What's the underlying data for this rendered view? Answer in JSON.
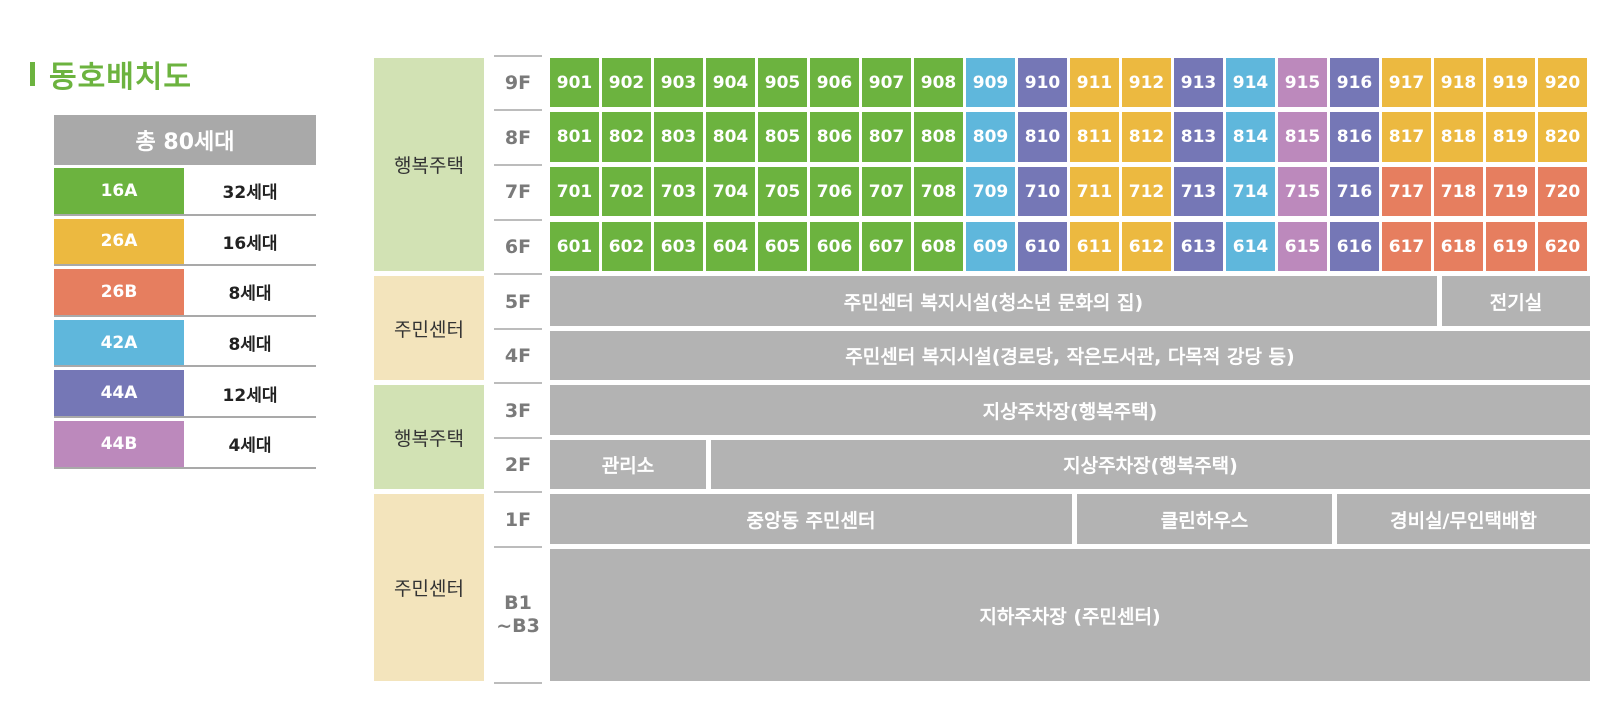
{
  "title": "동호배치도",
  "legend": {
    "total": "총 80세대",
    "items": [
      {
        "type": "16A",
        "count": "32세대",
        "color": "#6cb33f"
      },
      {
        "type": "26A",
        "count": "16세대",
        "color": "#ecb940"
      },
      {
        "type": "26B",
        "count": "8세대",
        "color": "#e67e5f"
      },
      {
        "type": "42A",
        "count": "8세대",
        "color": "#5fb7dc"
      },
      {
        "type": "44A",
        "count": "12세대",
        "color": "#7577b6"
      },
      {
        "type": "44B",
        "count": "4세대",
        "color": "#bc89bc"
      }
    ]
  },
  "zones": [
    "행복주택",
    "주민센터",
    "행복주택",
    "주민센터"
  ],
  "floors": [
    "9F",
    "8F",
    "7F",
    "6F",
    "5F",
    "4F",
    "3F",
    "2F",
    "1F",
    "B1\n~B3"
  ],
  "unit_floors": [
    {
      "floor": "9F",
      "units": [
        {
          "no": "901",
          "type": "16A"
        },
        {
          "no": "902",
          "type": "16A"
        },
        {
          "no": "903",
          "type": "16A"
        },
        {
          "no": "904",
          "type": "16A"
        },
        {
          "no": "905",
          "type": "16A"
        },
        {
          "no": "906",
          "type": "16A"
        },
        {
          "no": "907",
          "type": "16A"
        },
        {
          "no": "908",
          "type": "16A"
        },
        {
          "no": "909",
          "type": "42A"
        },
        {
          "no": "910",
          "type": "44A"
        },
        {
          "no": "911",
          "type": "26A"
        },
        {
          "no": "912",
          "type": "26A"
        },
        {
          "no": "913",
          "type": "44A"
        },
        {
          "no": "914",
          "type": "42A"
        },
        {
          "no": "915",
          "type": "44B"
        },
        {
          "no": "916",
          "type": "44A"
        },
        {
          "no": "917",
          "type": "26A"
        },
        {
          "no": "918",
          "type": "26A"
        },
        {
          "no": "919",
          "type": "26A"
        },
        {
          "no": "920",
          "type": "26A"
        }
      ]
    },
    {
      "floor": "8F",
      "units": [
        {
          "no": "801",
          "type": "16A"
        },
        {
          "no": "802",
          "type": "16A"
        },
        {
          "no": "803",
          "type": "16A"
        },
        {
          "no": "804",
          "type": "16A"
        },
        {
          "no": "805",
          "type": "16A"
        },
        {
          "no": "806",
          "type": "16A"
        },
        {
          "no": "807",
          "type": "16A"
        },
        {
          "no": "808",
          "type": "16A"
        },
        {
          "no": "809",
          "type": "42A"
        },
        {
          "no": "810",
          "type": "44A"
        },
        {
          "no": "811",
          "type": "26A"
        },
        {
          "no": "812",
          "type": "26A"
        },
        {
          "no": "813",
          "type": "44A"
        },
        {
          "no": "814",
          "type": "42A"
        },
        {
          "no": "815",
          "type": "44B"
        },
        {
          "no": "816",
          "type": "44A"
        },
        {
          "no": "817",
          "type": "26A"
        },
        {
          "no": "818",
          "type": "26A"
        },
        {
          "no": "819",
          "type": "26A"
        },
        {
          "no": "820",
          "type": "26A"
        }
      ]
    },
    {
      "floor": "7F",
      "units": [
        {
          "no": "701",
          "type": "16A"
        },
        {
          "no": "702",
          "type": "16A"
        },
        {
          "no": "703",
          "type": "16A"
        },
        {
          "no": "704",
          "type": "16A"
        },
        {
          "no": "705",
          "type": "16A"
        },
        {
          "no": "706",
          "type": "16A"
        },
        {
          "no": "707",
          "type": "16A"
        },
        {
          "no": "708",
          "type": "16A"
        },
        {
          "no": "709",
          "type": "42A"
        },
        {
          "no": "710",
          "type": "44A"
        },
        {
          "no": "711",
          "type": "26A"
        },
        {
          "no": "712",
          "type": "26A"
        },
        {
          "no": "713",
          "type": "44A"
        },
        {
          "no": "714",
          "type": "42A"
        },
        {
          "no": "715",
          "type": "44B"
        },
        {
          "no": "716",
          "type": "44A"
        },
        {
          "no": "717",
          "type": "26B"
        },
        {
          "no": "718",
          "type": "26B"
        },
        {
          "no": "719",
          "type": "26B"
        },
        {
          "no": "720",
          "type": "26B"
        }
      ]
    },
    {
      "floor": "6F",
      "units": [
        {
          "no": "601",
          "type": "16A"
        },
        {
          "no": "602",
          "type": "16A"
        },
        {
          "no": "603",
          "type": "16A"
        },
        {
          "no": "604",
          "type": "16A"
        },
        {
          "no": "605",
          "type": "16A"
        },
        {
          "no": "606",
          "type": "16A"
        },
        {
          "no": "607",
          "type": "16A"
        },
        {
          "no": "608",
          "type": "16A"
        },
        {
          "no": "609",
          "type": "42A"
        },
        {
          "no": "610",
          "type": "44A"
        },
        {
          "no": "611",
          "type": "26A"
        },
        {
          "no": "612",
          "type": "26A"
        },
        {
          "no": "613",
          "type": "44A"
        },
        {
          "no": "614",
          "type": "42A"
        },
        {
          "no": "615",
          "type": "44B"
        },
        {
          "no": "616",
          "type": "44A"
        },
        {
          "no": "617",
          "type": "26B"
        },
        {
          "no": "618",
          "type": "26B"
        },
        {
          "no": "619",
          "type": "26B"
        },
        {
          "no": "620",
          "type": "26B"
        }
      ]
    }
  ],
  "facilities": [
    {
      "label": "주민센터 복지시설(청소년 문화의 집)"
    },
    {
      "label": "전기실"
    },
    {
      "label": "주민센터 복지시설(경로당, 작은도서관, 다목적 강당 등)"
    },
    {
      "label": "지상주차장(행복주택)"
    },
    {
      "label": "관리소"
    },
    {
      "label": "지상주차장(행복주택)"
    },
    {
      "label": "중앙동 주민센터"
    },
    {
      "label": "클린하우스"
    },
    {
      "label": "경비실/무인택배함"
    },
    {
      "label": "지하주차장 (주민센터)"
    }
  ]
}
